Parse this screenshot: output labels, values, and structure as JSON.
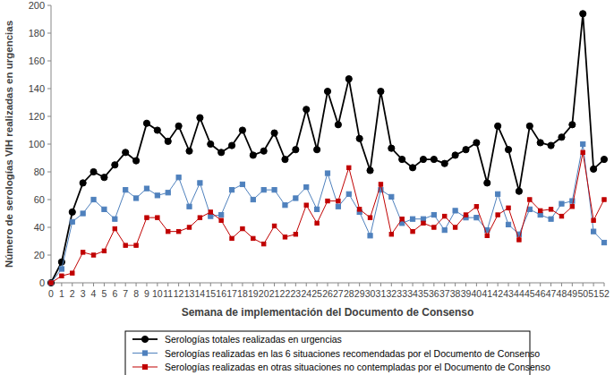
{
  "chart_data": {
    "type": "line",
    "x_label": "Semana de implementación del Documento de Consenso",
    "y_label": "Número de serologías VIH realizadas en urgencias",
    "x": [
      0,
      1,
      2,
      3,
      4,
      5,
      6,
      7,
      8,
      9,
      10,
      11,
      12,
      13,
      14,
      15,
      16,
      17,
      18,
      19,
      20,
      21,
      22,
      23,
      24,
      25,
      26,
      27,
      28,
      29,
      30,
      31,
      32,
      33,
      34,
      35,
      36,
      37,
      38,
      39,
      40,
      41,
      42,
      43,
      44,
      45,
      46,
      47,
      48,
      49,
      50,
      51,
      52
    ],
    "xlim": [
      0,
      52
    ],
    "xticks": [
      0,
      1,
      2,
      3,
      4,
      5,
      6,
      7,
      8,
      9,
      10,
      11,
      12,
      13,
      14,
      15,
      16,
      17,
      18,
      19,
      20,
      21,
      22,
      23,
      24,
      25,
      26,
      27,
      28,
      29,
      30,
      31,
      32,
      33,
      34,
      35,
      36,
      37,
      38,
      39,
      40,
      41,
      42,
      43,
      44,
      45,
      46,
      47,
      48,
      49,
      50,
      51,
      52
    ],
    "ylim": [
      0,
      200
    ],
    "yticks": [
      0,
      20,
      40,
      60,
      80,
      100,
      120,
      140,
      160,
      180,
      200
    ],
    "grid": false,
    "legend": "bottom",
    "series": [
      {
        "name": "Serologías totales realizadas en urgencias",
        "color": "#000000",
        "marker": "circle",
        "values": [
          0,
          15,
          51,
          72,
          80,
          76,
          85,
          94,
          88,
          115,
          110,
          102,
          113,
          95,
          119,
          100,
          94,
          99,
          110,
          92,
          95,
          108,
          89,
          96,
          125,
          96,
          138,
          114,
          147,
          104,
          81,
          138,
          97,
          89,
          83,
          89,
          89,
          86,
          92,
          96,
          101,
          72,
          113,
          96,
          66,
          113,
          101,
          99,
          105,
          114,
          194,
          82,
          89
        ]
      },
      {
        "name": "Serologías realizadas en las 6 situaciones recomendadas por el Documento de Consenso",
        "color": "#4f81bd",
        "marker": "square",
        "values": [
          0,
          10,
          44,
          50,
          60,
          53,
          46,
          67,
          61,
          68,
          63,
          65,
          76,
          55,
          72,
          48,
          49,
          67,
          71,
          60,
          67,
          67,
          56,
          61,
          69,
          53,
          79,
          55,
          64,
          51,
          34,
          67,
          62,
          43,
          46,
          46,
          49,
          38,
          52,
          47,
          47,
          38,
          64,
          42,
          35,
          53,
          49,
          46,
          57,
          59,
          100,
          37,
          29
        ]
      },
      {
        "name": "Serologías realizadas en otras situaciones no contempladas por el Documento de Consenso",
        "color": "#c00000",
        "marker": "square",
        "values": [
          0,
          5,
          7,
          22,
          20,
          23,
          39,
          27,
          27,
          47,
          47,
          37,
          37,
          40,
          47,
          51,
          45,
          32,
          39,
          32,
          28,
          41,
          33,
          35,
          56,
          43,
          59,
          59,
          83,
          53,
          47,
          71,
          35,
          46,
          37,
          43,
          40,
          48,
          40,
          49,
          55,
          34,
          49,
          54,
          31,
          60,
          52,
          53,
          48,
          55,
          94,
          45,
          60
        ]
      }
    ]
  }
}
